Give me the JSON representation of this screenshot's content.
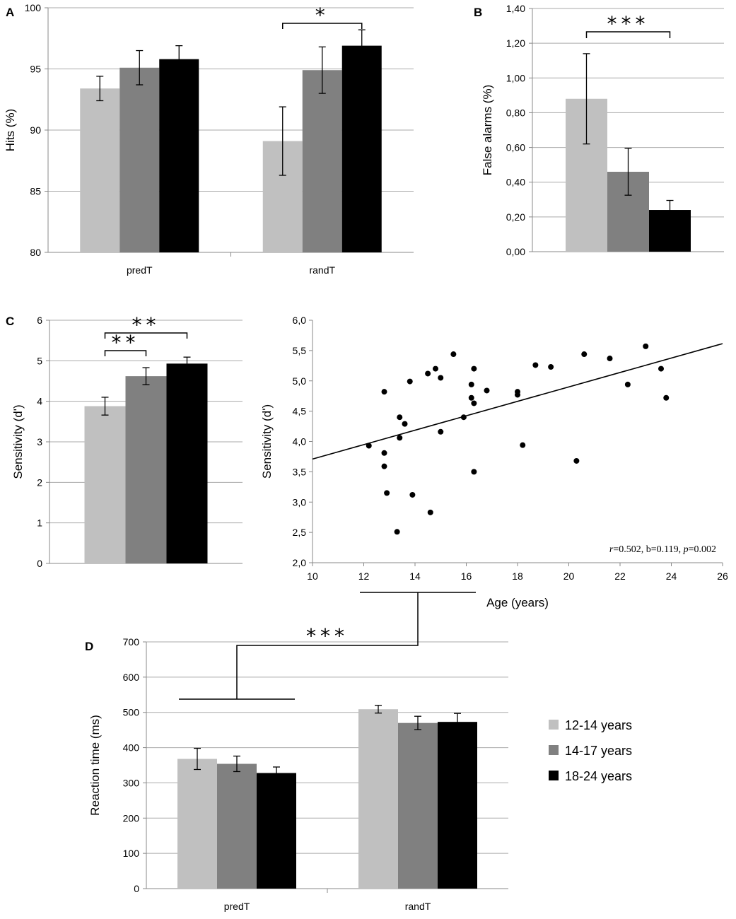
{
  "colors": {
    "light": "#c0c0c0",
    "mid": "#808080",
    "dark": "#000000",
    "grid": "#aaaaaa",
    "axis": "#888888"
  },
  "legend": [
    {
      "label": "12-14 years",
      "color": "#c0c0c0"
    },
    {
      "label": "14-17 years",
      "color": "#808080"
    },
    {
      "label": "18-24 years",
      "color": "#000000"
    }
  ],
  "chart_data": [
    {
      "panel": "A",
      "type": "bar",
      "categories": [
        "predT",
        "randT"
      ],
      "ylabel": "Hits (%)",
      "ylim": [
        80,
        100
      ],
      "yticks": [
        "80",
        "85",
        "90",
        "95",
        "100"
      ],
      "series": [
        {
          "name": "12-14 years",
          "values": [
            93.4,
            89.1
          ],
          "errors": [
            1.0,
            2.8
          ]
        },
        {
          "name": "14-17 years",
          "values": [
            95.1,
            94.9
          ],
          "errors": [
            1.4,
            1.9
          ]
        },
        {
          "name": "18-24 years",
          "values": [
            95.8,
            96.9
          ],
          "errors": [
            1.1,
            1.3
          ]
        }
      ],
      "significance": [
        {
          "label": "*",
          "category": "randT",
          "between": [
            "12-14 years",
            "18-24 years"
          ]
        }
      ]
    },
    {
      "panel": "B",
      "type": "bar",
      "categories": [
        ""
      ],
      "ylabel": "False alarms (%)",
      "ylim": [
        0,
        1.4
      ],
      "yticks": [
        "0,00",
        "0,20",
        "0,40",
        "0,60",
        "0,80",
        "1,00",
        "1,20",
        "1,40"
      ],
      "series": [
        {
          "name": "12-14 years",
          "values": [
            0.88
          ],
          "errors": [
            0.26
          ]
        },
        {
          "name": "14-17 years",
          "values": [
            0.46
          ],
          "errors": [
            0.135
          ]
        },
        {
          "name": "18-24 years",
          "values": [
            0.24
          ],
          "errors": [
            0.055
          ]
        }
      ],
      "significance": [
        {
          "label": "***",
          "between": [
            "12-14 years",
            "18-24 years"
          ]
        }
      ]
    },
    {
      "panel": "C",
      "type": "bar",
      "categories": [
        ""
      ],
      "ylabel": "Sensitivity (d')",
      "ylim": [
        0,
        6
      ],
      "yticks": [
        "0",
        "1",
        "2",
        "3",
        "4",
        "5",
        "6"
      ],
      "series": [
        {
          "name": "12-14 years",
          "values": [
            3.88
          ],
          "errors": [
            0.22
          ]
        },
        {
          "name": "14-17 years",
          "values": [
            4.62
          ],
          "errors": [
            0.21
          ]
        },
        {
          "name": "18-24 years",
          "values": [
            4.93
          ],
          "errors": [
            0.16
          ]
        }
      ],
      "significance": [
        {
          "label": "**",
          "between": [
            "12-14 years",
            "14-17 years"
          ]
        },
        {
          "label": "**",
          "between": [
            "12-14 years",
            "18-24 years"
          ]
        }
      ]
    },
    {
      "panel": "C",
      "type": "scatter",
      "xlabel": "Age (years)",
      "ylabel": "Sensitivity (d')",
      "xlim": [
        10,
        26
      ],
      "ylim": [
        2.0,
        6.0
      ],
      "xticks": [
        "10",
        "12",
        "14",
        "16",
        "18",
        "20",
        "22",
        "24",
        "26"
      ],
      "yticks": [
        "2,0",
        "2,5",
        "3,0",
        "3,5",
        "4,0",
        "4,5",
        "5,0",
        "5,5",
        "6,0"
      ],
      "annotation": {
        "r": "r",
        "r_val": "=0.502, b=0.119, ",
        "p": "p",
        "p_val": "=0.002"
      },
      "regression": {
        "intercept": 2.52,
        "slope": 0.119
      },
      "points": [
        [
          12.2,
          3.93
        ],
        [
          12.8,
          4.82
        ],
        [
          12.8,
          3.81
        ],
        [
          12.8,
          3.59
        ],
        [
          12.9,
          3.15
        ],
        [
          13.3,
          2.51
        ],
        [
          13.4,
          4.4
        ],
        [
          13.4,
          4.06
        ],
        [
          13.6,
          4.29
        ],
        [
          13.8,
          4.99
        ],
        [
          13.9,
          3.12
        ],
        [
          14.5,
          5.12
        ],
        [
          14.6,
          2.83
        ],
        [
          14.8,
          5.2
        ],
        [
          15.0,
          5.05
        ],
        [
          15.0,
          4.16
        ],
        [
          15.5,
          5.44
        ],
        [
          15.9,
          4.4
        ],
        [
          16.2,
          4.94
        ],
        [
          16.2,
          4.72
        ],
        [
          16.3,
          5.2
        ],
        [
          16.3,
          4.63
        ],
        [
          16.3,
          3.5
        ],
        [
          16.8,
          4.84
        ],
        [
          18.0,
          4.82
        ],
        [
          18.0,
          4.77
        ],
        [
          18.2,
          3.94
        ],
        [
          18.7,
          5.26
        ],
        [
          19.3,
          5.23
        ],
        [
          20.3,
          3.68
        ],
        [
          20.6,
          5.44
        ],
        [
          21.6,
          5.37
        ],
        [
          22.3,
          4.94
        ],
        [
          23.0,
          5.57
        ],
        [
          23.6,
          5.2
        ],
        [
          23.8,
          4.72
        ]
      ]
    },
    {
      "panel": "D",
      "type": "bar",
      "categories": [
        "predT",
        "randT"
      ],
      "ylabel": "Reaction time (ms)",
      "ylim": [
        0,
        700
      ],
      "yticks": [
        "0",
        "100",
        "200",
        "300",
        "400",
        "500",
        "600",
        "700"
      ],
      "series": [
        {
          "name": "12-14 years",
          "values": [
            368,
            509
          ],
          "errors": [
            30,
            11
          ]
        },
        {
          "name": "14-17 years",
          "values": [
            354,
            470
          ],
          "errors": [
            22,
            19
          ]
        },
        {
          "name": "18-24 years",
          "values": [
            328,
            473
          ],
          "errors": [
            17,
            24
          ]
        }
      ],
      "significance": [
        {
          "label": "***",
          "between": [
            "predT",
            "randT"
          ]
        }
      ]
    }
  ]
}
